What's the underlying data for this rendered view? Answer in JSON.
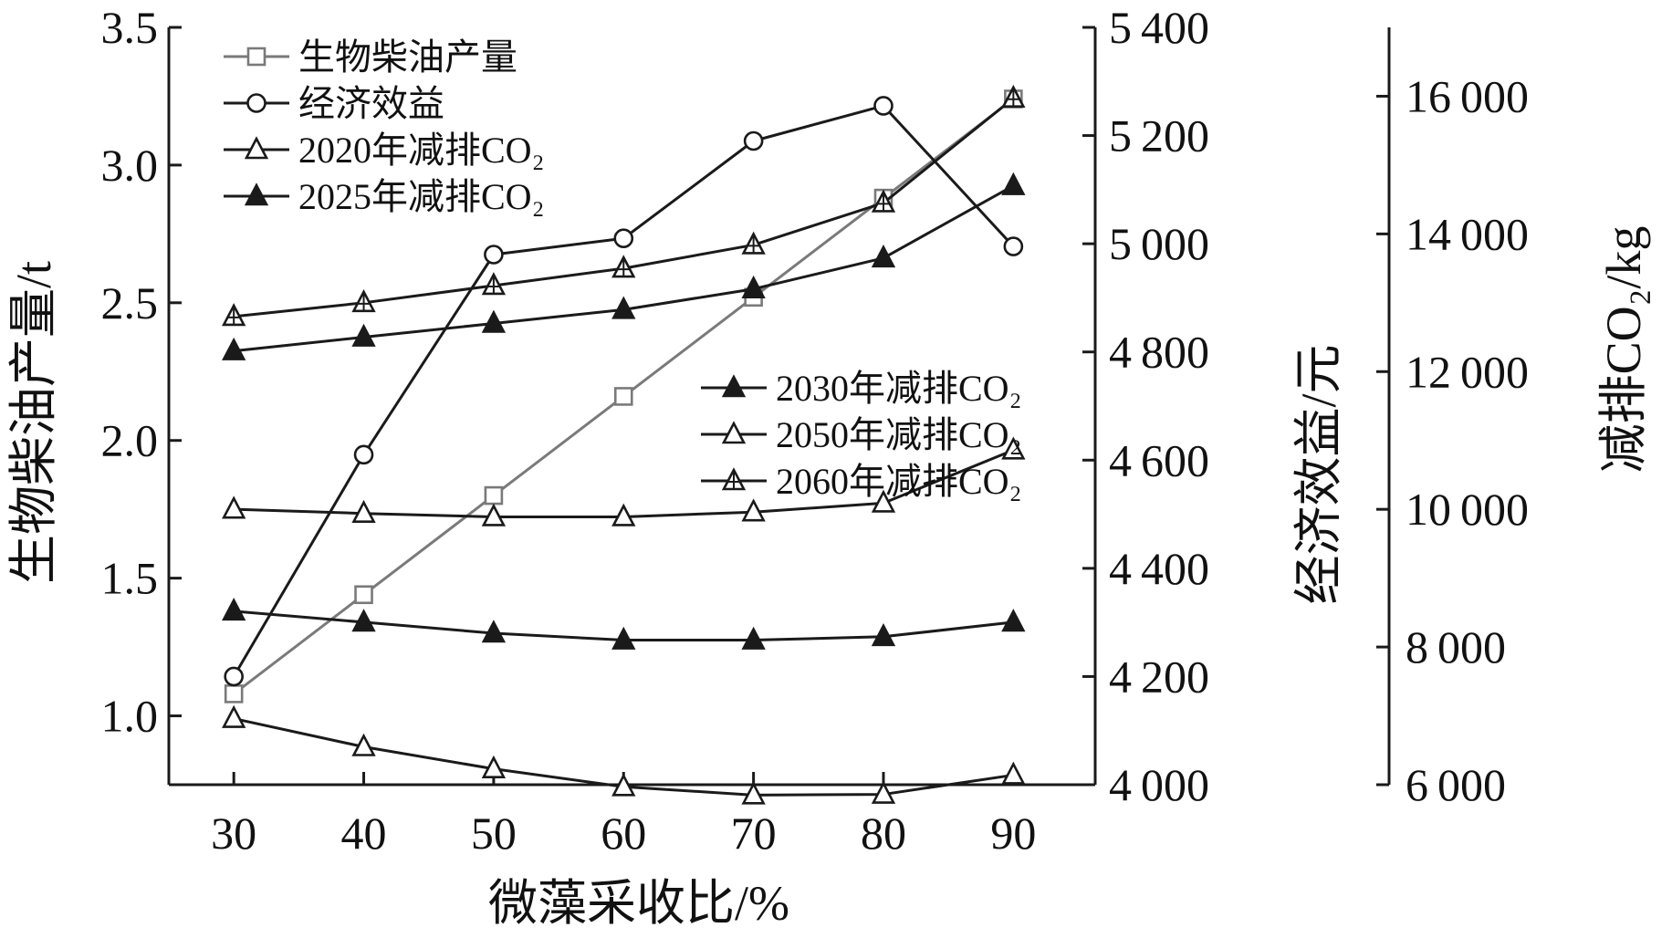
{
  "chart_data": {
    "type": "line",
    "x": [
      30,
      40,
      50,
      60,
      70,
      80,
      90
    ],
    "xlabel": "微藻采收比/%",
    "ylabel_left": "生物柴油产量/t",
    "ylabel_mid": "经济效益/元",
    "ylabel_right": "减排CO₂/kg",
    "xlim": [
      25,
      97
    ],
    "ylim_left": [
      0.75,
      3.5
    ],
    "ylim_mid": [
      4000,
      5400
    ],
    "ylim_right": [
      6000,
      17000
    ],
    "x_ticks": [
      30,
      40,
      50,
      60,
      70,
      80,
      90
    ],
    "y_left_ticks": [
      1.0,
      1.5,
      2.0,
      2.5,
      3.0,
      3.5
    ],
    "y_mid_ticks": [
      4000,
      4200,
      4400,
      4600,
      4800,
      5000,
      5200,
      5400
    ],
    "y_right_ticks": [
      6000,
      8000,
      10000,
      12000,
      14000,
      16000
    ],
    "grid": false,
    "legend_placement": "top-left and center-right",
    "series": [
      {
        "name": "生物柴油产量",
        "axis": "left",
        "marker": "square",
        "color": "#7a7a7a",
        "values": [
          1.08,
          1.44,
          1.8,
          2.16,
          2.52,
          2.88,
          3.24
        ]
      },
      {
        "name": "经济效益",
        "axis": "mid",
        "marker": "circle",
        "color": "#1a1a1a",
        "values": [
          4200,
          4610,
          4980,
          5010,
          5190,
          5255,
          4995
        ]
      },
      {
        "name": "2020年减排CO₂",
        "axis": "right",
        "marker": "triangle-open",
        "color": "#1a1a1a",
        "values": [
          6960,
          6550,
          6230,
          5970,
          5850,
          5860,
          6140
        ]
      },
      {
        "name": "2025年减排CO₂",
        "axis": "right",
        "marker": "triangle-filled",
        "color": "#1a1a1a",
        "values": [
          8520,
          8360,
          8200,
          8100,
          8100,
          8150,
          8360
        ]
      },
      {
        "name": "2030年减排CO₂",
        "axis": "right",
        "marker": "triangle-filled",
        "color": "#1a1a1a",
        "values": [
          12300,
          12500,
          12700,
          12900,
          13200,
          13650,
          14700
        ]
      },
      {
        "name": "2050年减排CO₂",
        "axis": "right",
        "marker": "triangle-open",
        "color": "#1a1a1a",
        "values": [
          10000,
          9940,
          9890,
          9890,
          9960,
          10090,
          10860
        ]
      },
      {
        "name": "2060年减排CO₂",
        "axis": "right",
        "marker": "triangle-plus",
        "color": "#1a1a1a",
        "values": [
          12800,
          13000,
          13250,
          13500,
          13840,
          14450,
          15970
        ]
      }
    ]
  }
}
